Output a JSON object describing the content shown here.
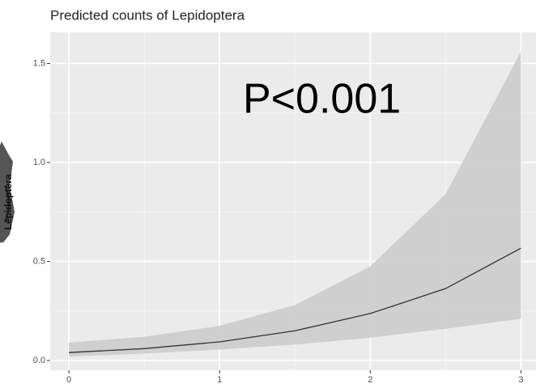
{
  "chart_data": {
    "type": "line",
    "title": "Predicted counts of Lepidoptera",
    "y_label": "Lepidoptera",
    "annotation": "P<0.001",
    "x": [
      0,
      0.5,
      1,
      1.5,
      2,
      2.5,
      3
    ],
    "values": [
      0.04,
      0.06,
      0.094,
      0.15,
      0.237,
      0.363,
      0.567
    ],
    "lower": [
      0.02,
      0.035,
      0.055,
      0.08,
      0.115,
      0.16,
      0.21
    ],
    "upper": [
      0.09,
      0.12,
      0.175,
      0.28,
      0.475,
      0.84,
      1.56
    ],
    "color": "#333333",
    "band_color": "#cccccc",
    "xlim": [
      -0.124,
      3.1
    ],
    "ylim": [
      -0.049,
      1.657
    ],
    "xticks": [
      0,
      1,
      2,
      3
    ],
    "yticks": [
      {
        "value": 0,
        "label": "0.0"
      },
      0.5,
      {
        "value": 1,
        "label": "1.0"
      },
      1.5
    ],
    "grid": true
  }
}
